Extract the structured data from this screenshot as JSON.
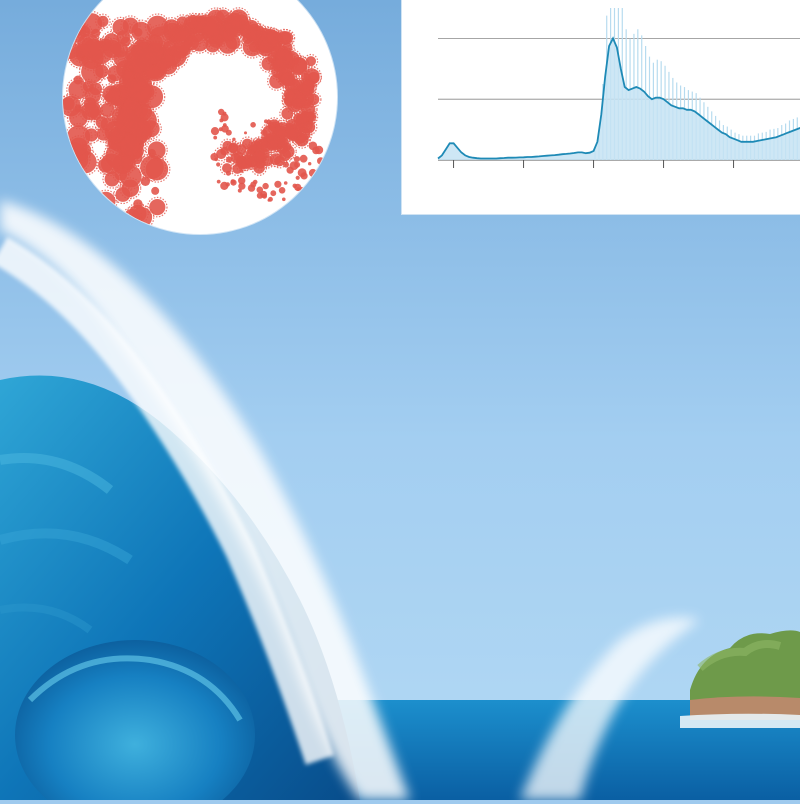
{
  "scene": {
    "description_icon": "ocean-wave-scene",
    "colors": {
      "sky_top": "#7fb3df",
      "sky_bottom": "#a8d2f2",
      "sea_dark": "#0a5fa3",
      "sea_mid": "#1f8fcf",
      "foam": "#ffffff",
      "island_green": "#6e9a4a",
      "island_rock": "#b88a6a"
    }
  },
  "inset_circle": {
    "icon": "virus-wave-icon",
    "particle_color": "#e2574c"
  },
  "chart_data": {
    "type": "area",
    "title": "",
    "xlabel": "",
    "ylabel": "",
    "grid": true,
    "legend": "none",
    "line_color": "#1e8ab6",
    "fill_color": "#c6e3f3",
    "ylim": [
      0,
      100
    ],
    "x": [
      0,
      1,
      2,
      3,
      4,
      5,
      6,
      7,
      8,
      9,
      10,
      11,
      12,
      13,
      14,
      15,
      16,
      17,
      18,
      19,
      20,
      21,
      22,
      23,
      24,
      25,
      26,
      27,
      28,
      29,
      30,
      31,
      32,
      33,
      34,
      35,
      36,
      37,
      38,
      39,
      40,
      41,
      42,
      43,
      44,
      45,
      46,
      47,
      48,
      49,
      50,
      51,
      52,
      53,
      54,
      55,
      56,
      57,
      58,
      59,
      60,
      61,
      62,
      63,
      64,
      65,
      66,
      67,
      68,
      69,
      70,
      71,
      72,
      73,
      74,
      75,
      76,
      77,
      78,
      79,
      80,
      81,
      82,
      83,
      84,
      85,
      86,
      87,
      88,
      89,
      90,
      91,
      92,
      93,
      94,
      95,
      96,
      97,
      98,
      99
    ],
    "values": [
      1,
      3,
      7,
      11,
      11,
      8,
      5,
      3,
      2,
      1.5,
      1.2,
      1,
      1,
      1,
      1,
      1,
      1.2,
      1.3,
      1.5,
      1.5,
      1.6,
      1.7,
      1.8,
      2,
      2,
      2.2,
      2.4,
      2.6,
      2.8,
      3,
      3.2,
      3.5,
      3.8,
      4,
      4.3,
      4.6,
      5,
      5,
      4.5,
      4.8,
      6,
      12,
      30,
      55,
      75,
      80,
      74,
      60,
      48,
      46,
      47,
      48,
      47,
      45,
      42,
      40,
      41,
      41,
      40,
      38,
      36,
      35,
      34,
      34,
      33,
      33,
      32,
      30,
      28,
      26,
      24,
      22,
      20,
      18,
      17,
      15,
      14,
      13,
      12,
      12,
      12,
      12,
      12.5,
      13,
      13.5,
      14,
      14.5,
      15,
      16,
      17,
      18,
      19,
      20,
      21,
      22,
      23,
      23,
      24,
      25,
      25
    ],
    "spikes": [
      0,
      0,
      0,
      0,
      0,
      0,
      0,
      0,
      0,
      0,
      0,
      0,
      0,
      0,
      0,
      0,
      0,
      0,
      0,
      0,
      0,
      0,
      0,
      0,
      0,
      0,
      0,
      0,
      0,
      0,
      0,
      0,
      0,
      0,
      0,
      0,
      0,
      0,
      0,
      0,
      2,
      6,
      20,
      40,
      55,
      62,
      58,
      50,
      38,
      34,
      36,
      38,
      35,
      30,
      26,
      24,
      25,
      24,
      22,
      20,
      18,
      16,
      15,
      14,
      13,
      12,
      12,
      11,
      10,
      9,
      8,
      7,
      6,
      5,
      5,
      5,
      4,
      4,
      4,
      4,
      4,
      4,
      5,
      5,
      5,
      6,
      6,
      6,
      7,
      7,
      8,
      8,
      8,
      9,
      9,
      9,
      10,
      10,
      10,
      10
    ]
  }
}
